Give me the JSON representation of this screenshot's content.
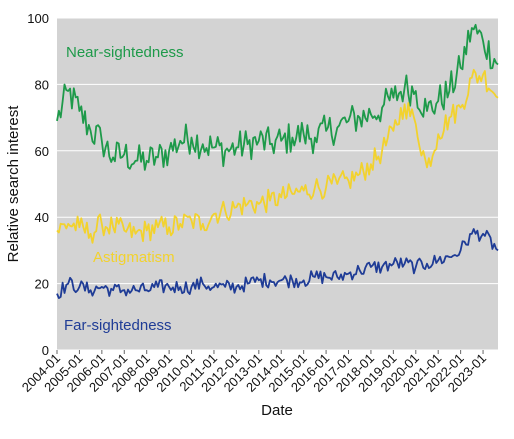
{
  "chart_data": {
    "type": "line",
    "xlabel": "Date",
    "ylabel": "Relative search interest",
    "ylim": [
      0,
      100
    ],
    "yticks": [
      "0",
      "20",
      "40",
      "60",
      "80",
      "100"
    ],
    "x_range": [
      "2004-01",
      "2023-09"
    ],
    "xticks": [
      "2004-01",
      "2005-01",
      "2006-01",
      "2007-01",
      "2008-01",
      "2009-01",
      "2010-01",
      "2011-01",
      "2012-01",
      "2013-01",
      "2014-01",
      "2015-01",
      "2016-01",
      "2017-01",
      "2018-01",
      "2019-01",
      "2020-01",
      "2021-01",
      "2022-01",
      "2023-01"
    ],
    "grid": "horizontal",
    "background": "#d3d3d3",
    "series": [
      {
        "name": "Near-sightedness",
        "color": "#1e9a4a",
        "points": [
          [
            "2004-01",
            69
          ],
          [
            "2004-07",
            78
          ],
          [
            "2005-01",
            72
          ],
          [
            "2005-07",
            66
          ],
          [
            "2006-01",
            63
          ],
          [
            "2006-07",
            58
          ],
          [
            "2007-01",
            59
          ],
          [
            "2007-07",
            57
          ],
          [
            "2008-01",
            57
          ],
          [
            "2008-07",
            58
          ],
          [
            "2009-01",
            60
          ],
          [
            "2009-07",
            63
          ],
          [
            "2010-01",
            64
          ],
          [
            "2010-07",
            62
          ],
          [
            "2011-01",
            61
          ],
          [
            "2011-07",
            60
          ],
          [
            "2012-01",
            61
          ],
          [
            "2012-07",
            62
          ],
          [
            "2013-01",
            63
          ],
          [
            "2013-07",
            62
          ],
          [
            "2014-01",
            63
          ],
          [
            "2014-07",
            64
          ],
          [
            "2015-01",
            65
          ],
          [
            "2015-07",
            64
          ],
          [
            "2016-01",
            66
          ],
          [
            "2016-07",
            67
          ],
          [
            "2017-01",
            69
          ],
          [
            "2017-07",
            70
          ],
          [
            "2018-01",
            71
          ],
          [
            "2018-07",
            73
          ],
          [
            "2019-01",
            76
          ],
          [
            "2019-07",
            79
          ],
          [
            "2020-01",
            78
          ],
          [
            "2020-07",
            72
          ],
          [
            "2021-01",
            75
          ],
          [
            "2021-07",
            78
          ],
          [
            "2022-01",
            85
          ],
          [
            "2022-07",
            97
          ],
          [
            "2023-01",
            93
          ],
          [
            "2023-09",
            86
          ]
        ]
      },
      {
        "name": "Astigmatism",
        "color": "#f2d22e",
        "points": [
          [
            "2004-01",
            36
          ],
          [
            "2004-07",
            38
          ],
          [
            "2005-01",
            37
          ],
          [
            "2005-07",
            35
          ],
          [
            "2006-01",
            38
          ],
          [
            "2006-07",
            37
          ],
          [
            "2007-01",
            36
          ],
          [
            "2007-07",
            35
          ],
          [
            "2008-01",
            36
          ],
          [
            "2008-07",
            37
          ],
          [
            "2009-01",
            37
          ],
          [
            "2009-07",
            38
          ],
          [
            "2010-01",
            39
          ],
          [
            "2010-07",
            38
          ],
          [
            "2011-01",
            41
          ],
          [
            "2011-07",
            42
          ],
          [
            "2012-01",
            43
          ],
          [
            "2012-07",
            44
          ],
          [
            "2013-01",
            44
          ],
          [
            "2013-07",
            45
          ],
          [
            "2014-01",
            46
          ],
          [
            "2014-07",
            47
          ],
          [
            "2015-01",
            48
          ],
          [
            "2015-07",
            49
          ],
          [
            "2016-01",
            49
          ],
          [
            "2016-07",
            50
          ],
          [
            "2017-01",
            51
          ],
          [
            "2017-07",
            53
          ],
          [
            "2018-01",
            56
          ],
          [
            "2018-07",
            60
          ],
          [
            "2019-01",
            66
          ],
          [
            "2019-07",
            74
          ],
          [
            "2020-01",
            68
          ],
          [
            "2020-07",
            55
          ],
          [
            "2021-01",
            65
          ],
          [
            "2021-07",
            70
          ],
          [
            "2022-01",
            73
          ],
          [
            "2022-07",
            82
          ],
          [
            "2023-01",
            83
          ],
          [
            "2023-09",
            76
          ]
        ]
      },
      {
        "name": "Far-sightedness",
        "color": "#1f3c96",
        "points": [
          [
            "2004-01",
            17
          ],
          [
            "2004-07",
            20
          ],
          [
            "2005-01",
            19
          ],
          [
            "2005-07",
            18
          ],
          [
            "2006-01",
            19
          ],
          [
            "2006-07",
            18
          ],
          [
            "2007-01",
            18
          ],
          [
            "2007-07",
            18
          ],
          [
            "2008-01",
            18
          ],
          [
            "2008-07",
            19
          ],
          [
            "2009-01",
            19
          ],
          [
            "2009-07",
            19
          ],
          [
            "2010-01",
            19
          ],
          [
            "2010-07",
            20
          ],
          [
            "2011-01",
            19
          ],
          [
            "2011-07",
            19
          ],
          [
            "2012-01",
            19
          ],
          [
            "2012-07",
            20
          ],
          [
            "2013-01",
            21
          ],
          [
            "2013-07",
            21
          ],
          [
            "2014-01",
            21
          ],
          [
            "2014-07",
            21
          ],
          [
            "2015-01",
            21
          ],
          [
            "2015-07",
            22
          ],
          [
            "2016-01",
            22
          ],
          [
            "2016-07",
            22
          ],
          [
            "2017-01",
            23
          ],
          [
            "2017-07",
            24
          ],
          [
            "2018-01",
            25
          ],
          [
            "2018-07",
            25
          ],
          [
            "2019-01",
            26
          ],
          [
            "2019-07",
            26
          ],
          [
            "2020-01",
            25
          ],
          [
            "2020-07",
            26
          ],
          [
            "2021-01",
            27
          ],
          [
            "2021-07",
            28
          ],
          [
            "2022-01",
            30
          ],
          [
            "2022-07",
            35
          ],
          [
            "2023-01",
            35
          ],
          [
            "2023-09",
            30
          ]
        ]
      }
    ]
  }
}
